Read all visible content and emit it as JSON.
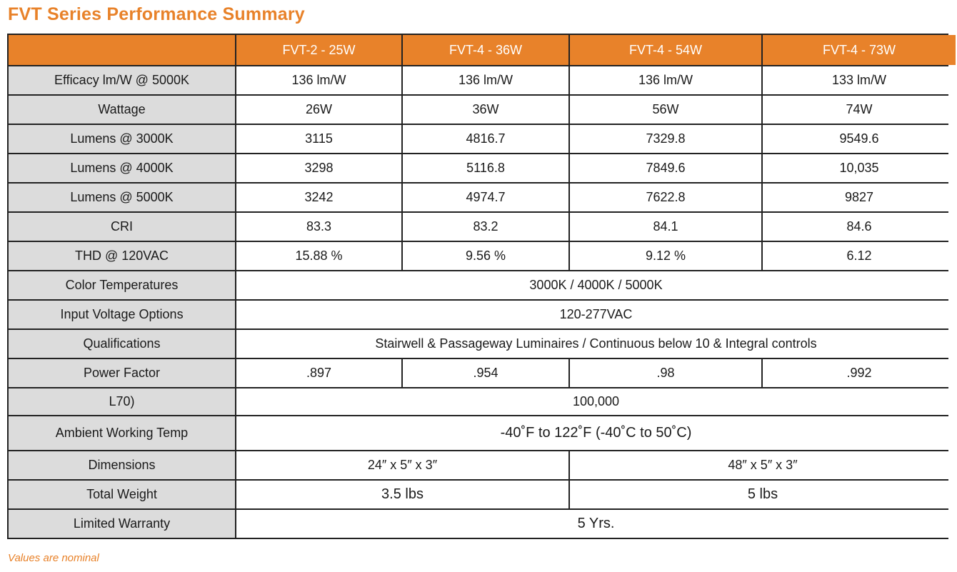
{
  "title": "FVT Series Performance Summary",
  "columns": [
    "",
    "FVT-2 - 25W",
    "FVT-4 - 36W",
    "FVT-4 - 54W",
    "FVT-4 - 73W"
  ],
  "rows": {
    "efficacy": {
      "label": "Efficacy lm/W @ 5000K",
      "values": [
        "136 lm/W",
        "136 lm/W",
        "136 lm/W",
        "133 lm/W"
      ]
    },
    "wattage": {
      "label": "Wattage",
      "values": [
        "26W",
        "36W",
        "56W",
        "74W"
      ]
    },
    "lumens3000": {
      "label": "Lumens @ 3000K",
      "values": [
        "3115",
        "4816.7",
        "7329.8",
        "9549.6"
      ]
    },
    "lumens4000": {
      "label": "Lumens @ 4000K",
      "values": [
        "3298",
        "5116.8",
        "7849.6",
        "10,035"
      ]
    },
    "lumens5000": {
      "label": "Lumens @ 5000K",
      "values": [
        "3242",
        "4974.7",
        "7622.8",
        "9827"
      ]
    },
    "cri": {
      "label": "CRI",
      "values": [
        "83.3",
        "83.2",
        "84.1",
        "84.6"
      ]
    },
    "thd": {
      "label": "THD @ 120VAC",
      "values": [
        "15.88 %",
        "9.56 %",
        "9.12 %",
        "6.12"
      ]
    },
    "color_temps": {
      "label": "Color Temperatures",
      "value": "3000K / 4000K / 5000K"
    },
    "input_voltage": {
      "label": "Input Voltage Options",
      "value": "120-277VAC"
    },
    "qualifications": {
      "label": "Qualifications",
      "value": "Stairwell & Passageway Luminaires / Continuous below 10 & Integral controls"
    },
    "power_factor": {
      "label": "Power Factor",
      "values": [
        ".897",
        ".954",
        ".98",
        ".992"
      ]
    },
    "l70": {
      "label": "L70)",
      "value": "100,000"
    },
    "ambient": {
      "label": "Ambient Working Temp",
      "value": "-40˚F to 122˚F (-40˚C to 50˚C)"
    },
    "dimensions": {
      "label": "Dimensions",
      "values": [
        "24″ x 5″ x 3″",
        "48″ x 5″ x 3″"
      ]
    },
    "weight": {
      "label": "Total Weight",
      "values": [
        "3.5 lbs",
        "5 lbs"
      ]
    },
    "warranty": {
      "label": "Limited Warranty",
      "value": "5 Yrs."
    }
  },
  "note": "Values are nominal",
  "colors": {
    "accent": "#e8822a",
    "label_bg": "#dcdcdc",
    "border": "#222222"
  }
}
